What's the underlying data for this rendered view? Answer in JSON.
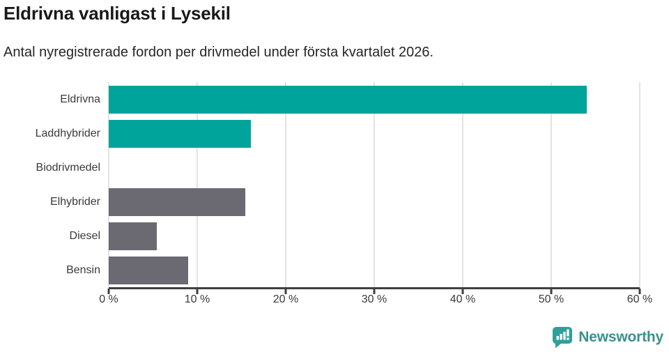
{
  "header": {
    "title": "Eldrivna vanligast i Lysekil",
    "subtitle": "Antal nyregistrerade fordon per drivmedel under första kvartalet 2026."
  },
  "chart_data": {
    "type": "bar",
    "orientation": "horizontal",
    "title": "Eldrivna vanligast i Lysekil",
    "subtitle": "Antal nyregistrerade fordon per drivmedel under första kvartalet 2026.",
    "categories": [
      "Eldrivna",
      "Laddhybrider",
      "Biodrivmedel",
      "Elhybrider",
      "Diesel",
      "Bensin"
    ],
    "values": [
      54.0,
      16.1,
      0,
      15.4,
      5.4,
      9.0
    ],
    "unit": "%",
    "xlim": [
      0,
      60
    ],
    "x_ticks": [
      {
        "value": 0,
        "label": "0 %"
      },
      {
        "value": 10,
        "label": "10 %"
      },
      {
        "value": 20,
        "label": "20 %"
      },
      {
        "value": 30,
        "label": "30 %"
      },
      {
        "value": 40,
        "label": "40 %"
      },
      {
        "value": 50,
        "label": "50 %"
      },
      {
        "value": 60,
        "label": "60 %"
      }
    ],
    "bar_colors": [
      "#00a49b",
      "#00a49b",
      "#00a49b",
      "#6b6a72",
      "#6b6a72",
      "#6b6a72"
    ],
    "grid": true,
    "legend": false,
    "ylabel": "",
    "xlabel": ""
  },
  "footer": {
    "brand": "Newsworthy"
  },
  "colors": {
    "accent_teal": "#00a49b",
    "bar_gray": "#6b6a72",
    "gridline": "#e3e3e3",
    "axis": "#3f3e44",
    "tick_text": "#3a3a3a",
    "title_text": "#1a1a1a",
    "logo_teal": "#2f9f99",
    "logo_text_teal": "#3a918c"
  }
}
